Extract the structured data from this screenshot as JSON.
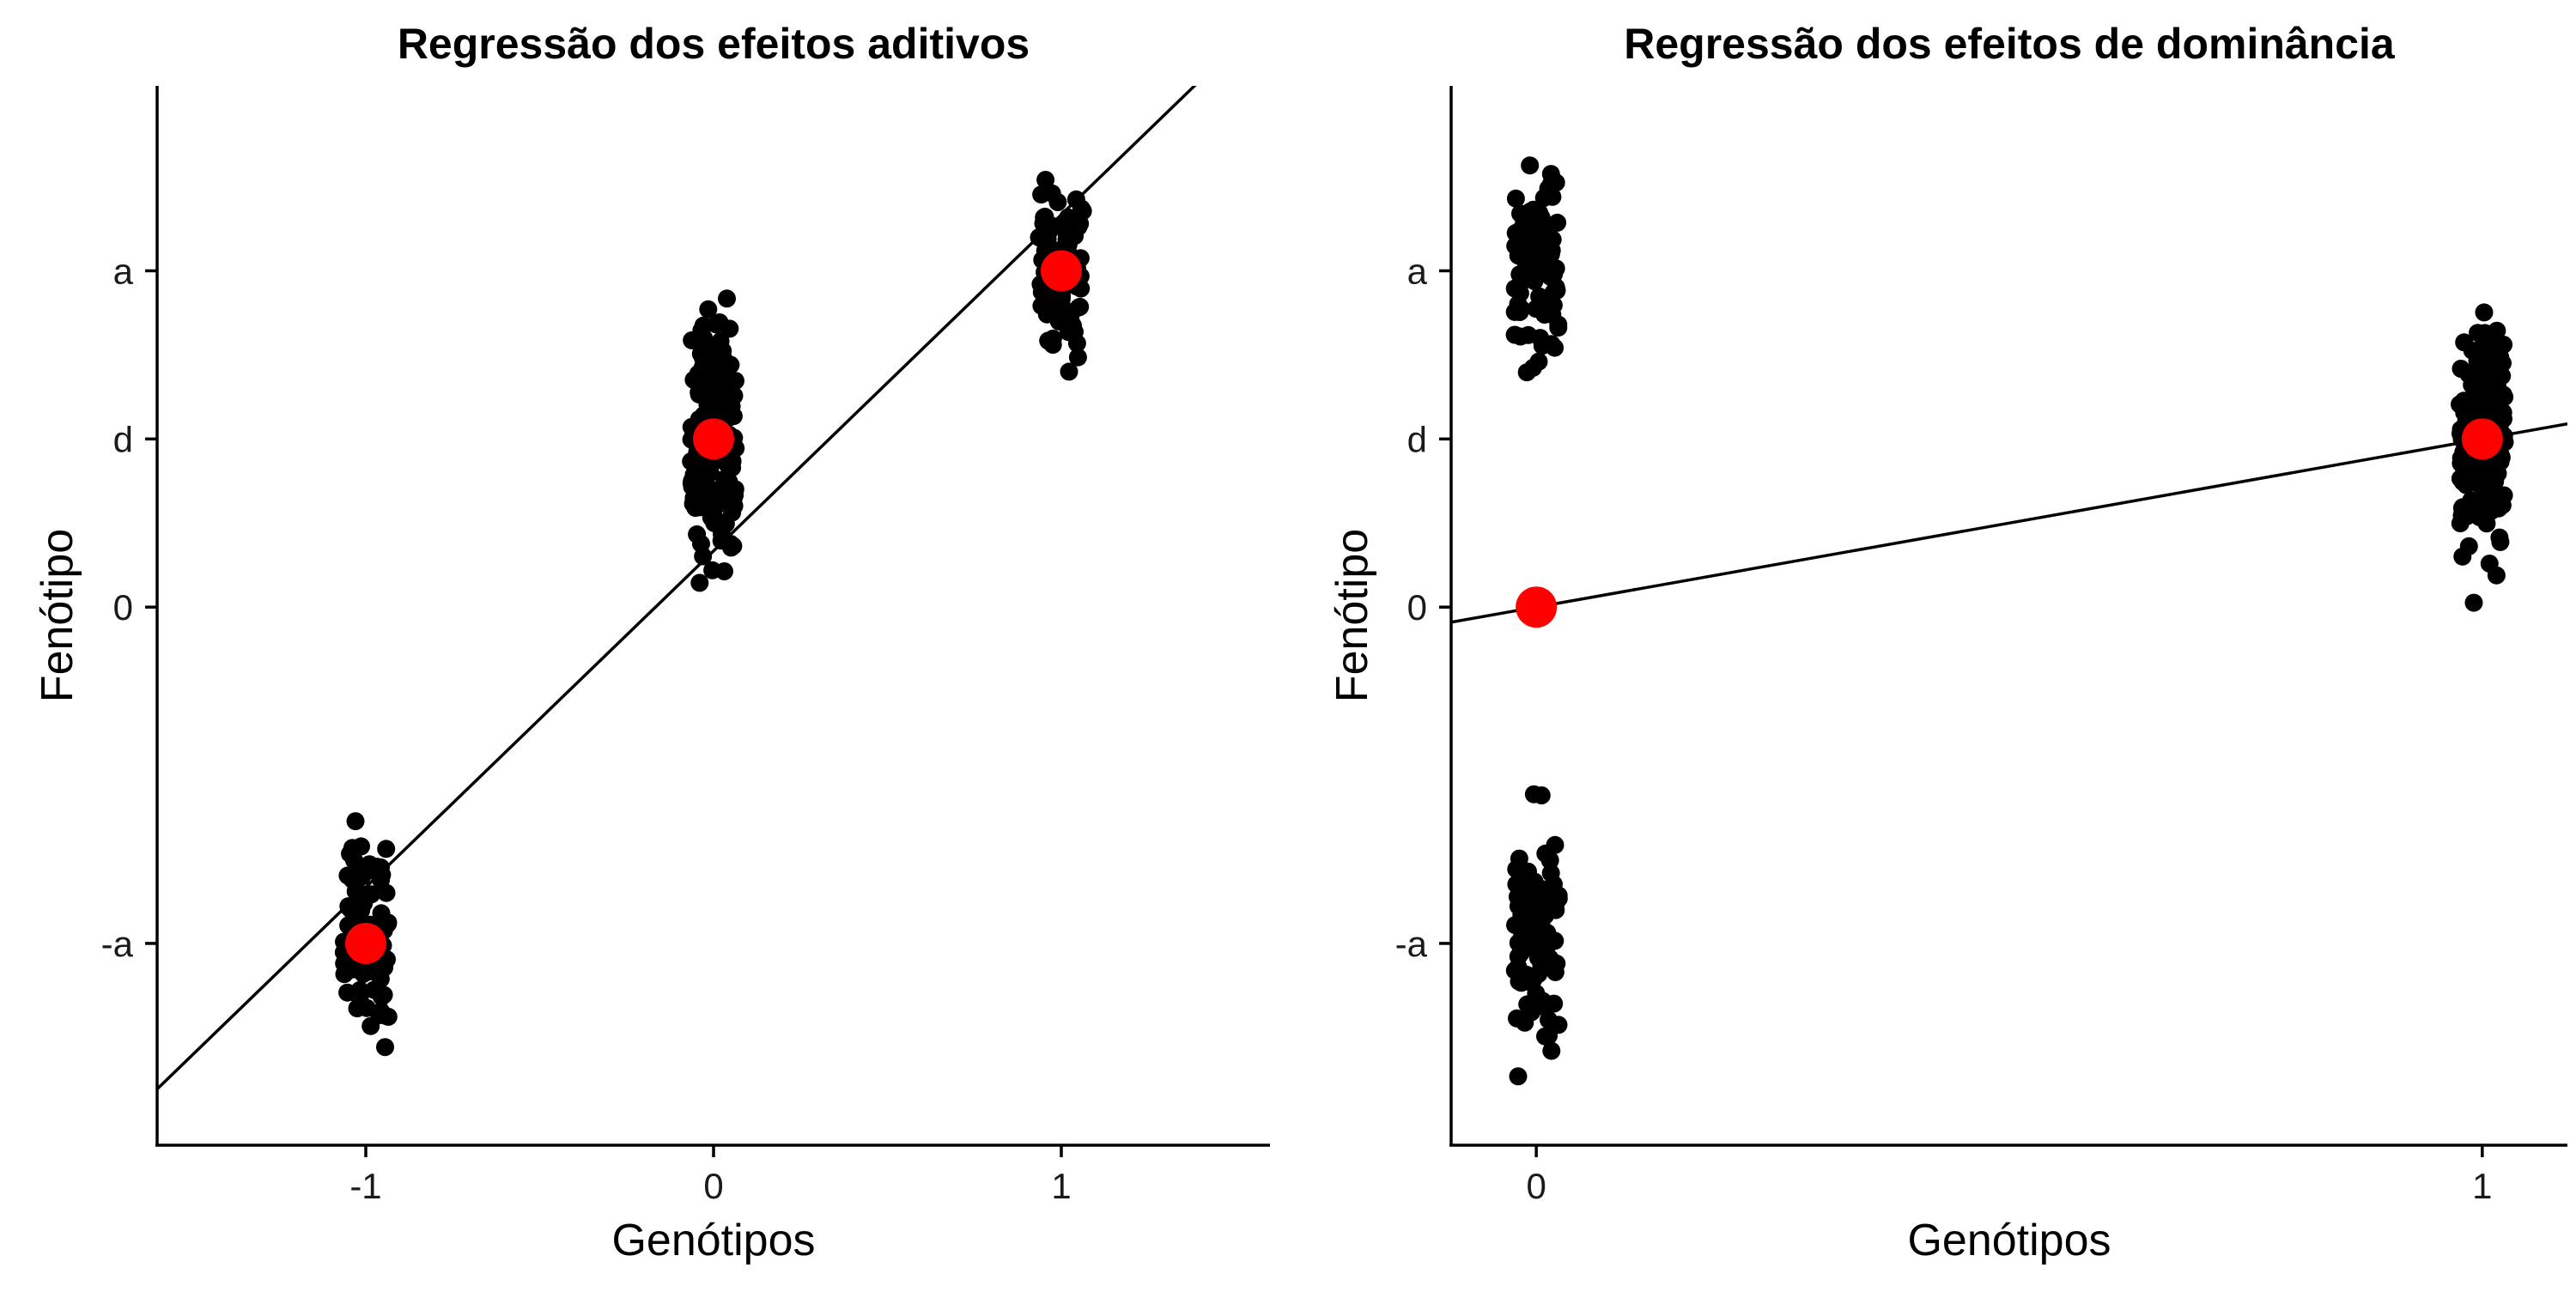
{
  "chart_data": [
    {
      "type": "scatter",
      "title": "Regressão dos efeitos aditivos",
      "xlabel": "Genótipos",
      "ylabel": "Fenótipo",
      "xlim": [
        -1.6,
        1.6
      ],
      "ylim": [
        -1.6,
        1.55
      ],
      "x_ticks": [
        {
          "value": -1,
          "label": "-1"
        },
        {
          "value": 0,
          "label": "0"
        },
        {
          "value": 1,
          "label": "1"
        }
      ],
      "y_ticks": [
        {
          "value": -1,
          "label": "-a"
        },
        {
          "value": 0,
          "label": "0"
        },
        {
          "value": 0.5,
          "label": "d"
        },
        {
          "value": 1,
          "label": "a"
        }
      ],
      "regression_line": {
        "intercept": 0.167,
        "slope": 1.0
      },
      "group_means": [
        {
          "x": -1,
          "y": -1
        },
        {
          "x": 0,
          "y": 0.5
        },
        {
          "x": 1,
          "y": 1
        }
      ],
      "groups": [
        {
          "x": -1,
          "n": 90,
          "y_min": -1.43,
          "y_max": -0.5
        },
        {
          "x": 0,
          "n": 180,
          "y_min": -0.03,
          "y_max": 0.99
        },
        {
          "x": 1,
          "n": 90,
          "y_min": 0.6,
          "y_max": 1.42
        }
      ],
      "grid": false,
      "legend": "none",
      "colors": {
        "points": "#000000",
        "means": "#ff0000",
        "line": "#000000"
      }
    },
    {
      "type": "scatter",
      "title": "Regressão dos efeitos de dominância",
      "xlabel": "Genótipos",
      "ylabel": "Fenótipo",
      "xlim": [
        -0.09,
        1.09
      ],
      "ylim": [
        -1.6,
        1.55
      ],
      "x_ticks": [
        {
          "value": 0,
          "label": "0"
        },
        {
          "value": 1,
          "label": "1"
        }
      ],
      "y_ticks": [
        {
          "value": -1,
          "label": "-a"
        },
        {
          "value": 0,
          "label": "0"
        },
        {
          "value": 0.5,
          "label": "d"
        },
        {
          "value": 1,
          "label": "a"
        }
      ],
      "regression_line": {
        "intercept": 0.0,
        "slope": 0.5
      },
      "group_means": [
        {
          "x": 0,
          "y": 0
        },
        {
          "x": 1,
          "y": 0.5
        }
      ],
      "groups": [
        {
          "x": 0,
          "n": 90,
          "y_min": 0.6,
          "y_max": 1.42
        },
        {
          "x": 0,
          "n": 90,
          "y_min": -1.43,
          "y_max": -0.5
        },
        {
          "x": 1,
          "n": 180,
          "y_min": -0.03,
          "y_max": 0.99
        }
      ],
      "grid": false,
      "legend": "none",
      "colors": {
        "points": "#000000",
        "means": "#ff0000",
        "line": "#000000"
      }
    }
  ]
}
